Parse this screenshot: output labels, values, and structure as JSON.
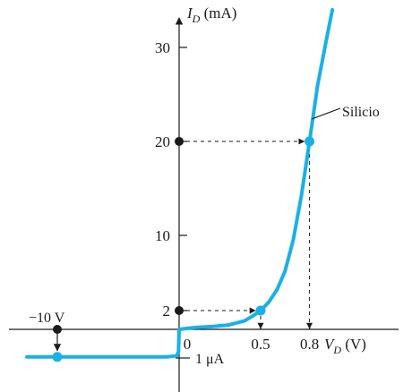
{
  "chart_data": {
    "type": "line",
    "xlabel_main": "V",
    "xlabel_sub": "D",
    "xlabel_unit": " (V)",
    "ylabel_main": "I",
    "ylabel_sub": "D",
    "ylabel_unit": " (mA)",
    "x_ticks": [
      {
        "value": 0,
        "label": "0"
      },
      {
        "value": 0.5,
        "label": "0.5"
      },
      {
        "value": 0.8,
        "label": "0.8"
      }
    ],
    "y_ticks": [
      {
        "value": 2,
        "label": "2"
      },
      {
        "value": 10,
        "label": "10"
      },
      {
        "value": 20,
        "label": "20"
      },
      {
        "value": 30,
        "label": "30"
      }
    ],
    "series": [
      {
        "name": "Silicio",
        "color": "#1ab0e6",
        "x": [
          -12.5,
          -10,
          -5,
          -1,
          -0.2,
          -0.05,
          0,
          0.1,
          0.2,
          0.3,
          0.4,
          0.45,
          0.5,
          0.55,
          0.6,
          0.65,
          0.7,
          0.75,
          0.8,
          0.85,
          0.9,
          0.94
        ],
        "y": [
          -2.2,
          -2.2,
          -2.2,
          -2.2,
          -2.1,
          -1.8,
          0,
          0.2,
          0.3,
          0.45,
          0.9,
          1.4,
          2,
          2.9,
          4.2,
          6.2,
          9.5,
          14.2,
          20,
          26,
          30.5,
          34
        ]
      }
    ],
    "points": [
      {
        "x": 0.5,
        "y": 2
      },
      {
        "x": 0.8,
        "y": 20
      },
      {
        "x": -10,
        "y": -2.2
      }
    ],
    "annotations": {
      "reverse_voltage": "−10 V",
      "reverse_current": "1 μA",
      "series_label": "Silicio"
    }
  }
}
